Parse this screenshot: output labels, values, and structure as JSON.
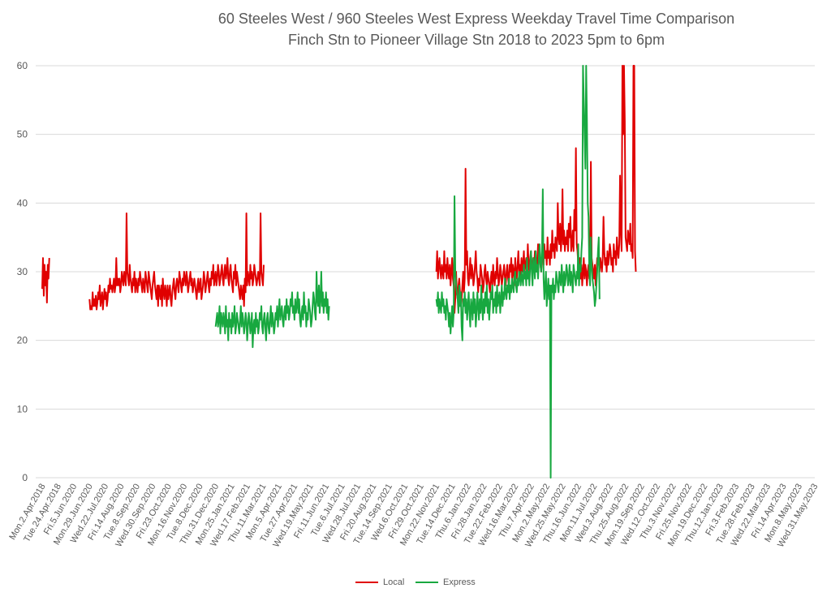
{
  "chart_data": {
    "type": "line",
    "title": "60 Steeles West / 960 Steeles West Express Weekday Travel Time Comparison",
    "subtitle": "Finch Stn to Pioneer Village Stn 2018 to 2023 5pm to 6pm",
    "xlabel": "",
    "ylabel": "",
    "ylim": [
      0,
      60
    ],
    "yticks": [
      0,
      10,
      20,
      30,
      40,
      50,
      60
    ],
    "grid": true,
    "legend_position": "bottom",
    "x_tick_labels": [
      "Mon.2.Apr.2018",
      "Tue.24.Apr.2018",
      "Fri.5.Jun.2020",
      "Mon.29.Jun.2020",
      "Wed.22.Jul.2020",
      "Fri.14.Aug.2020",
      "Tue.8.Sep.2020",
      "Wed.30.Sep.2020",
      "Fri.23.Oct.2020",
      "Mon.16.Nov.2020",
      "Tue.8.Dec.2020",
      "Thu.31.Dec.2020",
      "Mon.25.Jan.2021",
      "Wed.17.Feb.2021",
      "Thu.11.Mar.2021",
      "Mon.5.Apr.2021",
      "Tue.27.Apr.2021",
      "Wed.19.May.2021",
      "Fri.11.Jun.2021",
      "Tue.6.Jul.2021",
      "Wed.28.Jul.2021",
      "Fri.20.Aug.2021",
      "Tue.14.Sep.2021",
      "Wed.6.Oct.2021",
      "Fri.29.Oct.2021",
      "Mon.22.Nov.2021",
      "Tue.14.Dec.2021",
      "Thu.6.Jan.2022",
      "Fri.28.Jan.2022",
      "Tue.22.Feb.2022",
      "Wed.16.Mar.2022",
      "Thu.7.Apr.2022",
      "Mon.2.May.2022",
      "Wed.25.May.2022",
      "Thu.16.Jun.2022",
      "Mon.11.Jul.2022",
      "Wed.3.Aug.2022",
      "Thu.25.Aug.2022",
      "Mon.19.Sep.2022",
      "Wed.12.Oct.2022",
      "Thu.3.Nov.2022",
      "Fri.25.Nov.2022",
      "Mon.19.Dec.2022",
      "Thu.12.Jan.2023",
      "Fri.3.Feb.2023",
      "Tue.28.Feb.2023",
      "Wed.22.Mar.2023",
      "Fri.14.Apr.2023",
      "Mon.8.May.2023",
      "Wed.31.May.2023"
    ],
    "series": [
      {
        "name": "Local",
        "color": "#e00000",
        "segments": [
          {
            "start": 0,
            "values": [
              27.5,
              32,
              26.5,
              31,
              28,
              30,
              25.5,
              31,
              29,
              32
            ]
          },
          {
            "start": 3,
            "values": [
              26,
              24.5,
              25,
              24.5,
              27,
              25,
              26,
              25,
              26.5,
              24.5,
              25.5,
              27,
              26,
              28,
              25,
              26,
              27,
              24.5,
              26,
              27.5,
              26,
              27,
              25,
              26,
              28,
              27,
              29,
              27.5,
              28,
              27,
              28,
              29,
              27,
              28,
              32,
              28,
              29,
              28,
              29,
              27,
              28,
              30,
              29,
              28,
              30,
              29,
              28,
              38.5,
              30,
              29,
              28,
              31,
              29,
              28,
              27,
              29,
              28,
              30,
              27,
              29,
              28,
              27,
              29,
              28,
              30,
              29,
              28,
              27,
              29,
              28,
              27,
              30,
              29,
              28,
              27,
              30,
              29,
              28,
              27,
              26,
              28,
              29,
              30,
              28,
              27,
              26,
              28,
              25,
              28,
              27,
              26,
              28,
              25,
              29,
              27,
              26,
              28,
              27,
              25,
              28,
              26,
              27,
              28,
              26,
              25,
              27,
              28,
              29,
              27,
              26,
              28,
              29,
              28,
              27,
              30,
              29,
              28,
              27,
              29,
              28,
              30,
              29,
              28,
              30,
              29,
              27,
              28,
              29,
              30,
              28,
              29,
              27,
              28,
              29,
              28,
              27,
              26,
              28,
              29,
              27,
              28,
              29,
              26,
              27,
              28,
              30,
              29,
              27,
              28,
              29,
              30,
              28,
              27,
              29,
              28,
              30,
              29,
              31,
              28,
              29,
              30,
              28,
              29,
              31,
              30,
              28,
              29,
              30,
              31,
              29,
              28,
              30,
              31,
              29,
              30,
              32,
              29,
              28,
              30,
              31,
              29,
              28,
              27,
              30,
              29,
              31,
              28,
              30,
              29,
              28,
              27,
              26,
              28,
              27,
              26,
              28,
              25,
              29,
              27,
              38.5,
              28,
              30,
              29,
              28,
              31,
              29,
              30,
              28,
              29,
              31,
              30,
              29,
              28,
              29,
              30,
              29,
              28,
              38.5,
              30,
              29,
              28,
              31
            ]
          },
          {
            "start": 25,
            "values": [
              30,
              33,
              29,
              31,
              32,
              30,
              29,
              31,
              30,
              29,
              33,
              30,
              31,
              29,
              32,
              30,
              29,
              31,
              28,
              30,
              32,
              29,
              28,
              24,
              26,
              30,
              27,
              26,
              28,
              29,
              27,
              25,
              26,
              28,
              30,
              27,
              29,
              45,
              31,
              33,
              29,
              28,
              30,
              32,
              29,
              31,
              30,
              28,
              29,
              31,
              33,
              30,
              29,
              27,
              29,
              28,
              31,
              30,
              29,
              27,
              28,
              30,
              31,
              29,
              28,
              30,
              29,
              28,
              27,
              29,
              30,
              28,
              31,
              29,
              28,
              30,
              29,
              32,
              30,
              28,
              29,
              31,
              30,
              28,
              29,
              30,
              31,
              29,
              28,
              30,
              31,
              29,
              28,
              31,
              30,
              32,
              29,
              31,
              30,
              28,
              32,
              30,
              29,
              31,
              33,
              30,
              31,
              29,
              32,
              30,
              31,
              33,
              30,
              31,
              32,
              30,
              34,
              31,
              30,
              32,
              33,
              31,
              30,
              32,
              31,
              33,
              30,
              32,
              31,
              34,
              32,
              33,
              31,
              30,
              32,
              33,
              31,
              34,
              32,
              33,
              31,
              35,
              32,
              33,
              31,
              34,
              32,
              36,
              33,
              34,
              32,
              35,
              34,
              33,
              40,
              35,
              34,
              37,
              33,
              35,
              42,
              34,
              36,
              33,
              35,
              34,
              36,
              33,
              37,
              35,
              38,
              33,
              34,
              36,
              33,
              39,
              36,
              48,
              34,
              33,
              31,
              30,
              32,
              29,
              31,
              28,
              30,
              32,
              29,
              31,
              30,
              28,
              30,
              31,
              29,
              30,
              46,
              32,
              31,
              30,
              29,
              31,
              28,
              30,
              32,
              31,
              33,
              30,
              32,
              31,
              30,
              32,
              38,
              33,
              31,
              32,
              30,
              33,
              31,
              32,
              34,
              33,
              31,
              32,
              30,
              34,
              32,
              33,
              31,
              35,
              33,
              32,
              34,
              44,
              36,
              33,
              60,
              50,
              60,
              52,
              35,
              34,
              33,
              36,
              35,
              34,
              37,
              33,
              34,
              32,
              60,
              60,
              33,
              30
            ]
          }
        ]
      },
      {
        "name": "Express",
        "color": "#18a840",
        "segments": [
          {
            "start": 11,
            "values": [
              22,
              23,
              24,
              22,
              23,
              25,
              21,
              24,
              23,
              22,
              24,
              23,
              21,
              25,
              22,
              23,
              20,
              24,
              22,
              23,
              21,
              24,
              22,
              23,
              25,
              21,
              22,
              24,
              23,
              22,
              21,
              23,
              25,
              22,
              24,
              23,
              21,
              22,
              24,
              23,
              20,
              22,
              24,
              23,
              21,
              22,
              24,
              19,
              22,
              23,
              21,
              24,
              22,
              23,
              21,
              22,
              24,
              23,
              25,
              22,
              21,
              23,
              24,
              22,
              20,
              23,
              24,
              22,
              21,
              23,
              25,
              22,
              24,
              23,
              21,
              22,
              24,
              23,
              25,
              22,
              24,
              26,
              23,
              24,
              25,
              23,
              22,
              24,
              25,
              23,
              26,
              24,
              25,
              23,
              24,
              26,
              25,
              27,
              24,
              25,
              23,
              26,
              24,
              25,
              27,
              24,
              26,
              23,
              22,
              24,
              25,
              23,
              27,
              24,
              25,
              22,
              24,
              23,
              26,
              25,
              24,
              22,
              23,
              25,
              27,
              26,
              24,
              23,
              30,
              26,
              25,
              28,
              24,
              26,
              30,
              25,
              27,
              24,
              26,
              25,
              27,
              24,
              26,
              23,
              25
            ]
          },
          {
            "start": 25,
            "values": [
              26,
              25,
              27,
              24,
              26,
              25,
              24,
              27,
              25,
              26,
              24,
              25,
              23,
              26,
              25,
              24,
              22,
              24,
              21,
              23,
              25,
              22,
              24,
              41,
              30,
              28,
              27,
              26,
              24,
              28,
              25,
              27,
              22,
              20,
              26,
              25,
              27,
              24,
              26,
              23,
              25,
              27,
              24,
              22,
              26,
              25,
              23,
              27,
              24,
              26,
              22,
              24,
              27,
              25,
              23,
              26,
              24,
              28,
              25,
              23,
              26,
              24,
              27,
              25,
              28,
              24,
              26,
              23,
              25,
              27,
              26,
              28,
              24,
              26,
              25,
              27,
              24,
              28,
              25,
              26,
              27,
              24,
              26,
              28,
              25,
              27,
              26,
              29,
              27,
              26,
              28,
              27,
              29,
              26,
              28,
              27,
              29,
              28,
              27,
              29,
              30,
              28,
              27,
              29,
              28,
              30,
              29,
              28,
              30,
              29,
              28,
              31,
              29,
              30,
              28,
              32,
              29,
              30,
              28,
              31,
              33,
              30,
              28,
              32,
              31,
              29,
              33,
              30,
              31,
              29,
              32,
              34,
              31,
              30,
              33,
              42,
              29,
              26,
              28,
              30,
              25,
              27,
              29,
              26,
              28,
              0,
              28,
              27,
              29,
              26,
              28,
              27,
              30,
              29,
              28,
              27,
              30,
              29,
              28,
              31,
              29,
              27,
              30,
              28,
              29,
              31,
              30,
              28,
              29,
              31,
              28,
              30,
              29,
              27,
              31,
              30,
              29,
              28,
              30,
              29,
              34,
              28,
              31,
              30,
              33,
              35,
              60,
              55,
              50,
              45,
              60,
              52,
              40,
              38,
              30,
              28,
              35,
              31,
              29,
              28,
              27,
              25,
              26,
              28,
              30,
              33,
              35,
              26
            ]
          }
        ]
      }
    ]
  }
}
